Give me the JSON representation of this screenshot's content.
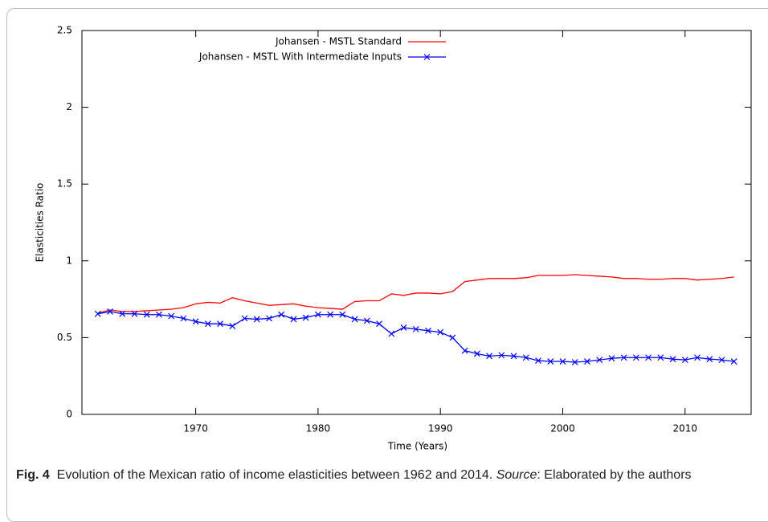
{
  "chart_data": {
    "type": "line",
    "x": [
      1962,
      1963,
      1964,
      1965,
      1966,
      1967,
      1968,
      1969,
      1970,
      1971,
      1972,
      1973,
      1974,
      1975,
      1976,
      1977,
      1978,
      1979,
      1980,
      1981,
      1982,
      1983,
      1984,
      1985,
      1986,
      1987,
      1988,
      1989,
      1990,
      1991,
      1992,
      1993,
      1994,
      1995,
      1996,
      1997,
      1998,
      1999,
      2000,
      2001,
      2002,
      2003,
      2004,
      2005,
      2006,
      2007,
      2008,
      2009,
      2010,
      2011,
      2012,
      2013,
      2014
    ],
    "series": [
      {
        "name": "Johansen - MSTL Standard",
        "color": "#ff0000",
        "marker": false,
        "values": [
          0.66,
          0.68,
          0.67,
          0.67,
          0.675,
          0.68,
          0.685,
          0.695,
          0.72,
          0.73,
          0.725,
          0.76,
          0.74,
          0.725,
          0.71,
          0.715,
          0.72,
          0.705,
          0.695,
          0.69,
          0.685,
          0.735,
          0.74,
          0.74,
          0.785,
          0.775,
          0.79,
          0.79,
          0.785,
          0.8,
          0.865,
          0.875,
          0.885,
          0.885,
          0.885,
          0.89,
          0.905,
          0.905,
          0.905,
          0.91,
          0.905,
          0.9,
          0.895,
          0.885,
          0.885,
          0.88,
          0.88,
          0.885,
          0.885,
          0.875,
          0.88,
          0.885,
          0.895
        ]
      },
      {
        "name": "Johansen - MSTL With Intermediate Inputs",
        "color": "#0000ff",
        "marker": true,
        "values": [
          0.655,
          0.67,
          0.655,
          0.655,
          0.65,
          0.65,
          0.64,
          0.625,
          0.605,
          0.59,
          0.59,
          0.575,
          0.625,
          0.62,
          0.625,
          0.65,
          0.62,
          0.63,
          0.65,
          0.65,
          0.65,
          0.62,
          0.61,
          0.59,
          0.525,
          0.565,
          0.555,
          0.545,
          0.535,
          0.5,
          0.415,
          0.395,
          0.38,
          0.385,
          0.38,
          0.37,
          0.35,
          0.345,
          0.345,
          0.34,
          0.345,
          0.355,
          0.365,
          0.37,
          0.37,
          0.37,
          0.37,
          0.36,
          0.355,
          0.37,
          0.36,
          0.355,
          0.345
        ]
      }
    ],
    "x_label": "Time (Years)",
    "y_label": "Elasticities Ratio",
    "xlim": [
      1960.7,
      2015.4
    ],
    "xticks": [
      1970,
      1980,
      1990,
      2000,
      2010
    ],
    "ylim": [
      0,
      2.5
    ],
    "yticks": [
      0,
      0.5,
      1,
      1.5,
      2,
      2.5
    ],
    "legend": "top-right"
  },
  "caption": {
    "label": "Fig. 4",
    "text": "Evolution of the Mexican ratio of income elasticities between 1962 and 2014.",
    "source_label": "Source",
    "source_text": ": Elaborated by the authors"
  }
}
